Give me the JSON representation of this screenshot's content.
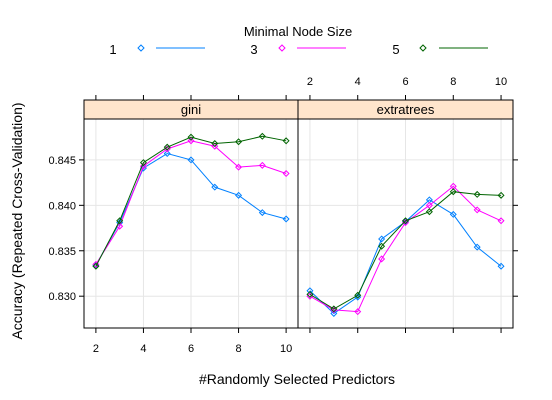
{
  "chart_data": {
    "type": "line",
    "xlabel": "#Randomly Selected Predictors",
    "ylabel": "Accuracy (Repeated Cross-Validation)",
    "legend": {
      "title": "Minimal Node Size",
      "position": "top",
      "entries": [
        {
          "label": "1",
          "color": "#0080ff"
        },
        {
          "label": "3",
          "color": "#ff00ff"
        },
        {
          "label": "5",
          "color": "#006400"
        }
      ]
    },
    "xlim": [
      1.5,
      10.5
    ],
    "ylim": [
      0.8265,
      0.8495
    ],
    "x_ticks": [
      2,
      4,
      6,
      8,
      10
    ],
    "y_ticks": [
      0.83,
      0.835,
      0.84,
      0.845
    ],
    "y_tick_labels": [
      "0.830",
      "0.835",
      "0.840",
      "0.845"
    ],
    "grid": true,
    "panels": [
      {
        "label": "gini",
        "series": [
          {
            "name": "1",
            "color": "#0080ff",
            "x": [
              2,
              3,
              4,
              5,
              6,
              7,
              8,
              9,
              10
            ],
            "y": [
              0.8334,
              0.8381,
              0.8441,
              0.8457,
              0.845,
              0.842,
              0.8411,
              0.8392,
              0.8385
            ]
          },
          {
            "name": "3",
            "color": "#ff00ff",
            "x": [
              2,
              3,
              4,
              5,
              6,
              7,
              8,
              9,
              10
            ],
            "y": [
              0.8335,
              0.8377,
              0.8443,
              0.8462,
              0.8471,
              0.8465,
              0.8442,
              0.8444,
              0.8435
            ]
          },
          {
            "name": "5",
            "color": "#006400",
            "x": [
              2,
              3,
              4,
              5,
              6,
              7,
              8,
              9,
              10
            ],
            "y": [
              0.8333,
              0.8383,
              0.8447,
              0.8464,
              0.8475,
              0.8468,
              0.847,
              0.8476,
              0.8471
            ]
          }
        ]
      },
      {
        "label": "extratrees",
        "series": [
          {
            "name": "1",
            "color": "#0080ff",
            "x": [
              2,
              3,
              4,
              5,
              6,
              7,
              8,
              9,
              10
            ],
            "y": [
              0.8306,
              0.8281,
              0.8299,
              0.8363,
              0.8382,
              0.8406,
              0.839,
              0.8354,
              0.8333
            ]
          },
          {
            "name": "3",
            "color": "#ff00ff",
            "x": [
              2,
              3,
              4,
              5,
              6,
              7,
              8,
              9,
              10
            ],
            "y": [
              0.83,
              0.8285,
              0.8283,
              0.8341,
              0.8381,
              0.84,
              0.8421,
              0.8395,
              0.8383
            ]
          },
          {
            "name": "5",
            "color": "#006400",
            "x": [
              2,
              3,
              4,
              5,
              6,
              7,
              8,
              9,
              10
            ],
            "y": [
              0.8302,
              0.8286,
              0.8301,
              0.8355,
              0.8383,
              0.8393,
              0.8415,
              0.8412,
              0.8411
            ]
          }
        ]
      }
    ]
  }
}
